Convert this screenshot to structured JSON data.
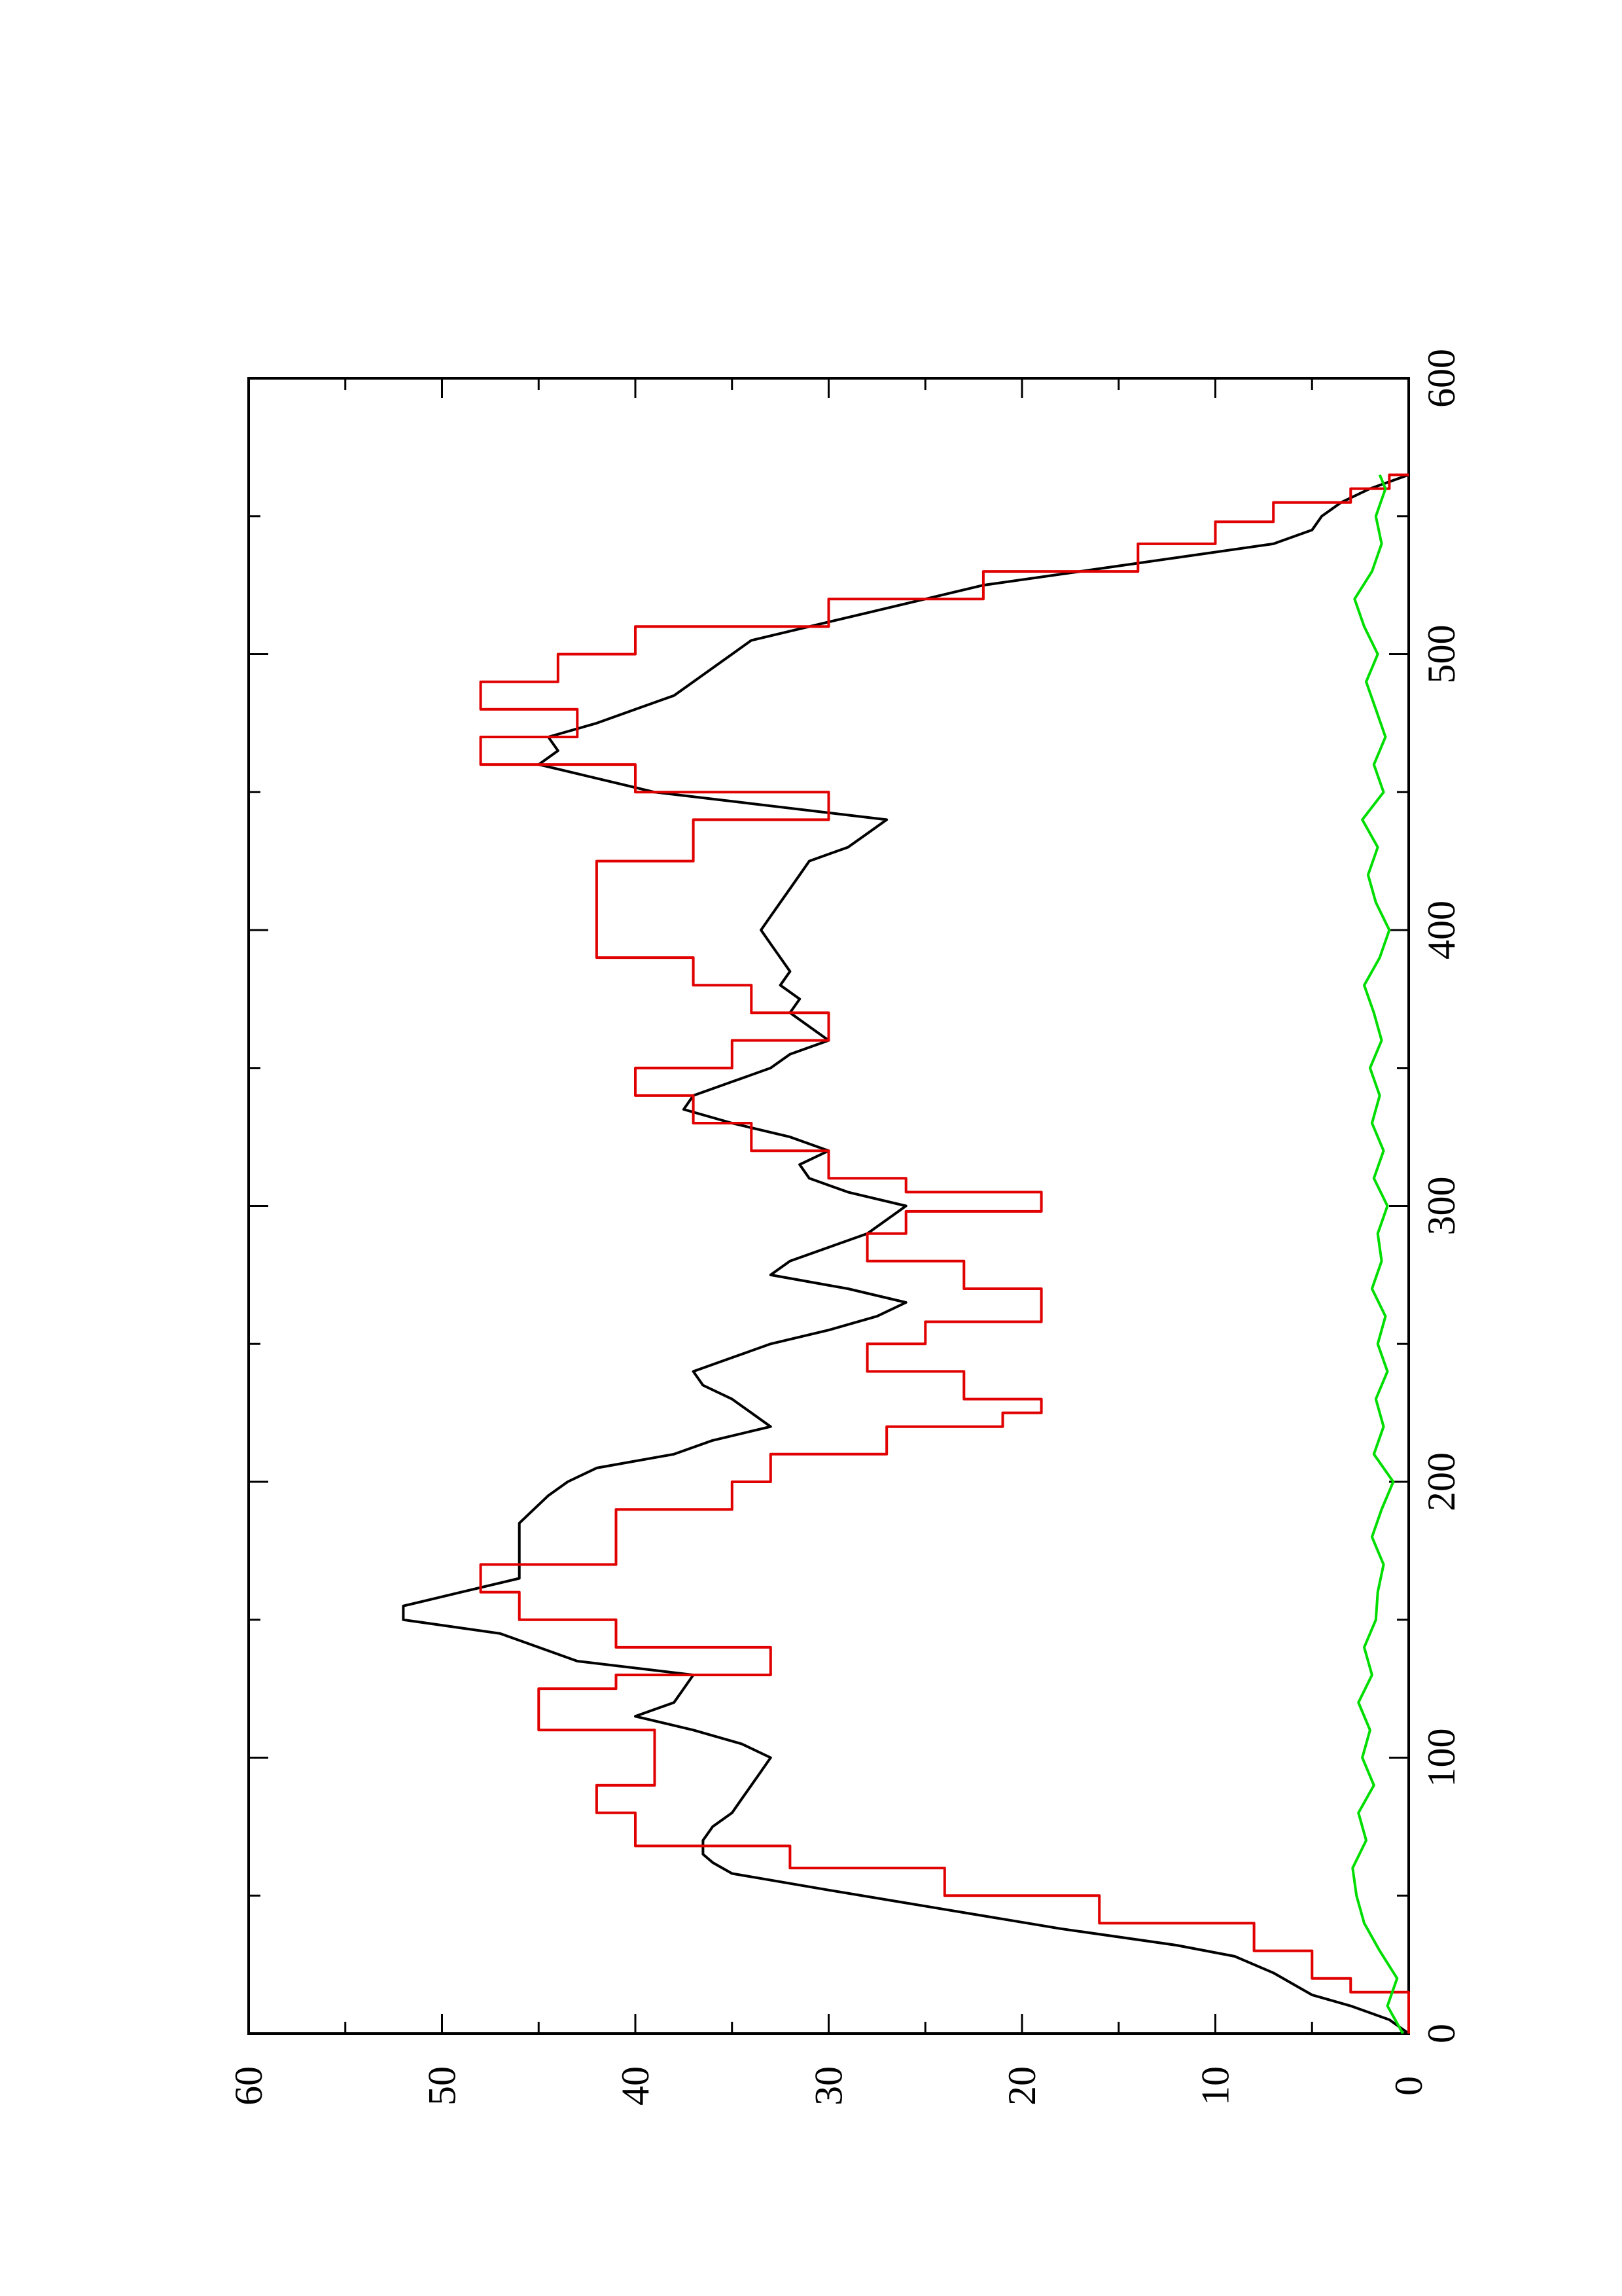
{
  "chart_data": {
    "type": "line",
    "orientation": "rotated 90 degrees counter-clockwise (x axis runs vertically, y axis horizontally)",
    "title": "",
    "xlabel": "",
    "ylabel": "",
    "xlim": [
      0,
      600
    ],
    "ylim": [
      0,
      60
    ],
    "x_ticks": [
      "0",
      "100",
      "200",
      "300",
      "400",
      "500",
      "600"
    ],
    "y_ticks": [
      "0",
      "10",
      "20",
      "30",
      "40",
      "50",
      "60"
    ],
    "grid": false,
    "legend": "none",
    "series": [
      {
        "color": "#000000",
        "style": "line",
        "points": [
          [
            0,
            0
          ],
          [
            5,
            1
          ],
          [
            10,
            3
          ],
          [
            14,
            5
          ],
          [
            18,
            6
          ],
          [
            22,
            7
          ],
          [
            28,
            9
          ],
          [
            32,
            12
          ],
          [
            38,
            18
          ],
          [
            45,
            24
          ],
          [
            52,
            30
          ],
          [
            58,
            35
          ],
          [
            62,
            36
          ],
          [
            65,
            36.5
          ],
          [
            70,
            36.5
          ],
          [
            75,
            36
          ],
          [
            80,
            35
          ],
          [
            85,
            34.5
          ],
          [
            90,
            34
          ],
          [
            95,
            33.5
          ],
          [
            100,
            33
          ],
          [
            105,
            34.5
          ],
          [
            110,
            37
          ],
          [
            115,
            40
          ],
          [
            120,
            38
          ],
          [
            125,
            37.5
          ],
          [
            130,
            37
          ],
          [
            135,
            43
          ],
          [
            140,
            45
          ],
          [
            145,
            47
          ],
          [
            150,
            52
          ],
          [
            155,
            52
          ],
          [
            160,
            49
          ],
          [
            165,
            46
          ],
          [
            175,
            46
          ],
          [
            185,
            46
          ],
          [
            195,
            44.5
          ],
          [
            200,
            43.5
          ],
          [
            205,
            42
          ],
          [
            210,
            38
          ],
          [
            215,
            36
          ],
          [
            220,
            33
          ],
          [
            225,
            34
          ],
          [
            230,
            35
          ],
          [
            235,
            36.5
          ],
          [
            240,
            37
          ],
          [
            245,
            35
          ],
          [
            250,
            33
          ],
          [
            255,
            30
          ],
          [
            260,
            27.5
          ],
          [
            265,
            26
          ],
          [
            270,
            29
          ],
          [
            275,
            33
          ],
          [
            280,
            32
          ],
          [
            285,
            30
          ],
          [
            290,
            28
          ],
          [
            295,
            27
          ],
          [
            300,
            26
          ],
          [
            305,
            29
          ],
          [
            310,
            31
          ],
          [
            315,
            31.5
          ],
          [
            320,
            30
          ],
          [
            325,
            32
          ],
          [
            330,
            35
          ],
          [
            335,
            37.5
          ],
          [
            340,
            37
          ],
          [
            345,
            35
          ],
          [
            350,
            33
          ],
          [
            355,
            32
          ],
          [
            360,
            30
          ],
          [
            365,
            31
          ],
          [
            370,
            32
          ],
          [
            375,
            31.5
          ],
          [
            380,
            32.5
          ],
          [
            385,
            32
          ],
          [
            390,
            32.5
          ],
          [
            395,
            33
          ],
          [
            400,
            33.5
          ],
          [
            405,
            33
          ],
          [
            410,
            32.5
          ],
          [
            415,
            32
          ],
          [
            420,
            31.5
          ],
          [
            425,
            31
          ],
          [
            430,
            29
          ],
          [
            435,
            28
          ],
          [
            440,
            27
          ],
          [
            445,
            33
          ],
          [
            450,
            39
          ],
          [
            455,
            42
          ],
          [
            460,
            45
          ],
          [
            465,
            44
          ],
          [
            470,
            44.5
          ],
          [
            475,
            42
          ],
          [
            480,
            40
          ],
          [
            485,
            38
          ],
          [
            490,
            37
          ],
          [
            495,
            36
          ],
          [
            500,
            35
          ],
          [
            505,
            34
          ],
          [
            510,
            31
          ],
          [
            515,
            28
          ],
          [
            520,
            25
          ],
          [
            525,
            22
          ],
          [
            530,
            17
          ],
          [
            535,
            12
          ],
          [
            540,
            7
          ],
          [
            545,
            5
          ],
          [
            550,
            4.5
          ],
          [
            555,
            3.5
          ],
          [
            560,
            2
          ],
          [
            565,
            0
          ]
        ]
      },
      {
        "color": "#e00000",
        "style": "step",
        "points": [
          [
            0,
            0
          ],
          [
            15,
            3
          ],
          [
            20,
            5
          ],
          [
            30,
            8
          ],
          [
            40,
            16
          ],
          [
            50,
            24
          ],
          [
            60,
            32
          ],
          [
            68,
            40
          ],
          [
            80,
            42
          ],
          [
            90,
            39
          ],
          [
            100,
            39
          ],
          [
            110,
            45
          ],
          [
            120,
            45
          ],
          [
            125,
            41
          ],
          [
            130,
            33
          ],
          [
            140,
            41
          ],
          [
            150,
            46
          ],
          [
            160,
            48
          ],
          [
            170,
            41
          ],
          [
            180,
            41
          ],
          [
            190,
            35
          ],
          [
            200,
            33
          ],
          [
            210,
            27
          ],
          [
            220,
            21
          ],
          [
            225,
            19
          ],
          [
            230,
            23
          ],
          [
            240,
            28
          ],
          [
            250,
            25
          ],
          [
            258,
            19
          ],
          [
            265,
            19
          ],
          [
            270,
            23
          ],
          [
            280,
            28
          ],
          [
            290,
            26
          ],
          [
            298,
            19
          ],
          [
            305,
            26
          ],
          [
            310,
            30
          ],
          [
            320,
            34
          ],
          [
            330,
            37
          ],
          [
            340,
            40
          ],
          [
            350,
            35
          ],
          [
            360,
            30
          ],
          [
            370,
            34
          ],
          [
            380,
            37
          ],
          [
            390,
            42
          ],
          [
            400,
            42
          ],
          [
            415,
            42
          ],
          [
            425,
            37
          ],
          [
            435,
            37
          ],
          [
            440,
            30
          ],
          [
            450,
            40
          ],
          [
            460,
            48
          ],
          [
            470,
            43
          ],
          [
            480,
            48
          ],
          [
            490,
            44
          ],
          [
            500,
            40
          ],
          [
            510,
            30
          ],
          [
            520,
            22
          ],
          [
            530,
            14
          ],
          [
            540,
            10
          ],
          [
            548,
            7
          ],
          [
            555,
            3
          ],
          [
            560,
            1
          ],
          [
            565,
            0
          ]
        ]
      },
      {
        "color": "#00dd00",
        "style": "line",
        "points": [
          [
            0,
            0.3
          ],
          [
            10,
            1.1
          ],
          [
            20,
            0.6
          ],
          [
            30,
            1.5
          ],
          [
            40,
            2.3
          ],
          [
            50,
            2.7
          ],
          [
            60,
            2.9
          ],
          [
            70,
            2.2
          ],
          [
            80,
            2.6
          ],
          [
            90,
            1.8
          ],
          [
            100,
            2.4
          ],
          [
            110,
            2.0
          ],
          [
            120,
            2.6
          ],
          [
            130,
            1.9
          ],
          [
            140,
            2.3
          ],
          [
            150,
            1.7
          ],
          [
            160,
            1.6
          ],
          [
            170,
            1.3
          ],
          [
            180,
            1.9
          ],
          [
            190,
            1.4
          ],
          [
            200,
            0.8
          ],
          [
            210,
            1.8
          ],
          [
            220,
            1.3
          ],
          [
            230,
            1.7
          ],
          [
            240,
            1.1
          ],
          [
            250,
            1.6
          ],
          [
            260,
            1.2
          ],
          [
            270,
            1.9
          ],
          [
            280,
            1.4
          ],
          [
            290,
            1.6
          ],
          [
            300,
            1.1
          ],
          [
            310,
            1.8
          ],
          [
            320,
            1.3
          ],
          [
            330,
            1.9
          ],
          [
            340,
            1.5
          ],
          [
            350,
            2.0
          ],
          [
            360,
            1.4
          ],
          [
            370,
            1.8
          ],
          [
            380,
            2.3
          ],
          [
            390,
            1.5
          ],
          [
            400,
            1.0
          ],
          [
            410,
            1.7
          ],
          [
            420,
            2.1
          ],
          [
            430,
            1.6
          ],
          [
            440,
            2.4
          ],
          [
            450,
            1.3
          ],
          [
            460,
            1.8
          ],
          [
            470,
            1.2
          ],
          [
            480,
            1.7
          ],
          [
            490,
            2.2
          ],
          [
            500,
            1.6
          ],
          [
            510,
            2.3
          ],
          [
            520,
            2.8
          ],
          [
            530,
            1.9
          ],
          [
            540,
            1.4
          ],
          [
            550,
            1.7
          ],
          [
            560,
            1.2
          ],
          [
            565,
            1.5
          ]
        ]
      }
    ]
  }
}
